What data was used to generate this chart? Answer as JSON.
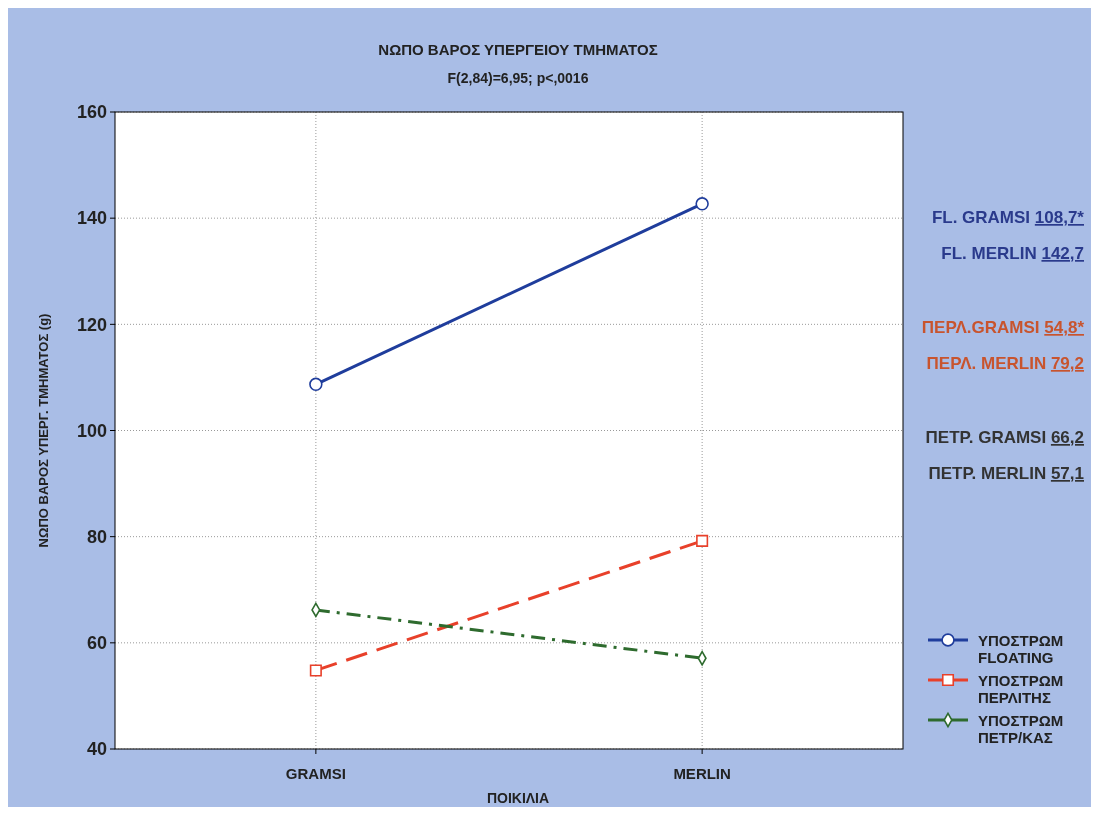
{
  "chart_data": {
    "type": "line",
    "title": "ΝΩΠΟ ΒΑΡΟΣ ΥΠΕΡΓΕΙΟΥ ΤΜΗΜΑΤΟΣ",
    "subtitle": "F(2,84)=6,95; p<,0016",
    "xlabel": "ΠΟΙΚΙΛΙΑ",
    "ylabel": "ΝΩΠΟ ΒΑΡΟΣ ΥΠΕΡΓ. ΤΜΗΜΑΤΟΣ (g)",
    "categories": [
      "GRAMSI",
      "MERLIN"
    ],
    "ylim": [
      40,
      160
    ],
    "yticks": [
      40,
      60,
      80,
      100,
      120,
      140,
      160
    ],
    "grid": true,
    "legend": "bottom right",
    "series": [
      {
        "name": "ΥΠΟΣΤΡΩΜ FLOATING",
        "color": "#1f3d9c",
        "values": [
          108.7,
          142.7
        ],
        "marker": "circle",
        "line_style": "solid"
      },
      {
        "name": "ΥΠΟΣΤΡΩΜ ΠΕΡΛΙΤΗΣ",
        "color": "#e8402a",
        "values": [
          54.8,
          79.2
        ],
        "marker": "square",
        "line_style": "dashed"
      },
      {
        "name": "ΥΠΟΣΤΡΩΜ ΠΕΤΡ/ΚΑΣ",
        "color": "#2e6b2e",
        "values": [
          66.2,
          57.1
        ],
        "marker": "diamond",
        "line_style": "dashdot"
      }
    ],
    "annotations": [
      "FL. GRAMSI 108,7*",
      "FL. MERLIN 142,7",
      "ΠΕΡΛ.GRAMSI 54,8*",
      "ΠΕΡΛ. MERLIN 79,2",
      "ΠΕΤΡ. GRAMSI 66,2",
      "ΠΕΤΡ. MERLIN 57,1"
    ]
  }
}
